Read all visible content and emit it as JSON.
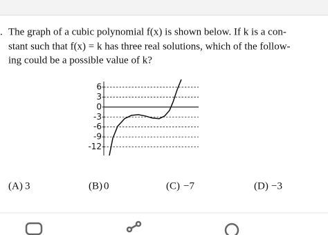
{
  "question": {
    "number_fragment": ".",
    "lines": [
      "The graph of a cubic polynomial f(x) is shown below. If k is a con-",
      "stant such that f(x) = k has three real solutions, which of the follow-",
      "ing could be a possible value of k?"
    ],
    "choices": [
      {
        "letter": "(A)",
        "text": "3"
      },
      {
        "letter": "(B)",
        "text": "0"
      },
      {
        "letter": "(C)",
        "text": "−7"
      },
      {
        "letter": "(D)",
        "text": "−3"
      }
    ]
  },
  "chart_data": {
    "type": "line",
    "color": "#111111",
    "x": [
      158,
      163,
      170,
      180,
      190,
      200,
      210,
      220,
      230,
      238,
      245,
      250,
      256,
      262
    ],
    "values": [
      -14.6,
      -9.4,
      -5.8,
      -3.5,
      -2.5,
      -2.3,
      -2.7,
      -3.3,
      -3.5,
      -2.7,
      -1,
      1.5,
      5.2,
      8.3
    ],
    "xlim": [
      150,
      287
    ],
    "ylim": [
      -14.6,
      8.3
    ],
    "yticks": [
      6,
      3,
      0,
      -3,
      -6,
      -9,
      -12
    ],
    "grid": true
  }
}
